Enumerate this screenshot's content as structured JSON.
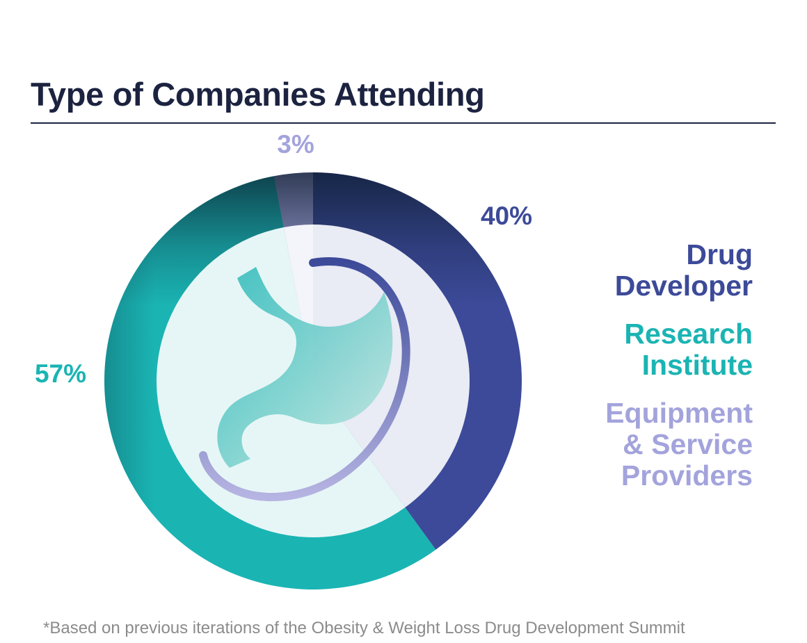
{
  "title": "Type of Companies Attending",
  "footnote": "*Based on previous iterations of the Obesity & Weight Loss Drug Development Summit",
  "chart_data": {
    "type": "pie",
    "title": "Type of Companies Attending",
    "legend_position": "right",
    "series": [
      {
        "name": "Drug Developer",
        "value": 40,
        "label": "40%",
        "color": "#3c4a99"
      },
      {
        "name": "Research Institute",
        "value": 57,
        "label": "57%",
        "color": "#1ab4b3"
      },
      {
        "name": "Equipment & Service Providers",
        "value": 3,
        "label": "3%",
        "color": "#a3a3dc"
      }
    ]
  },
  "legend": [
    {
      "text": "Drug\nDeveloper",
      "color": "#3c4a99"
    },
    {
      "text": "Research\nInstitute",
      "color": "#1ab4b3"
    },
    {
      "text": "Equipment\n& Service\nProviders",
      "color": "#a3a3dc"
    }
  ],
  "illustration": {
    "icon": "stomach-icon"
  }
}
